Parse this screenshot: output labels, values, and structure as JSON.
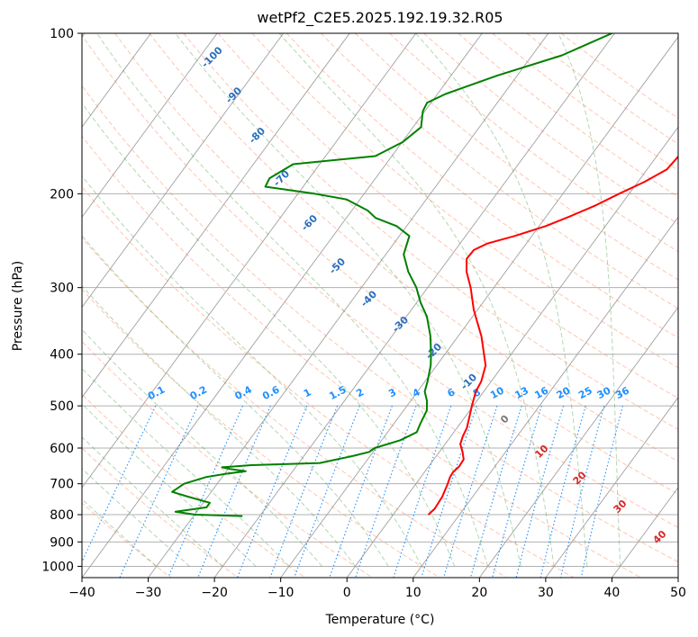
{
  "chart_data": {
    "type": "skew-t",
    "title": "wetPf2_C2E5.2025.192.19.32.R05",
    "xlabel": "Temperature (°C)",
    "ylabel": "Pressure (hPa)",
    "xlim": [
      -40,
      50
    ],
    "ylim": [
      1050,
      100
    ],
    "y_scale": "log",
    "grid": true,
    "x_ticks": [
      -40,
      -30,
      -20,
      -10,
      0,
      10,
      20,
      30,
      40,
      50
    ],
    "y_ticks": [
      100,
      200,
      300,
      400,
      500,
      600,
      700,
      800,
      900,
      1000
    ],
    "colors": {
      "temperature": "#ff0000",
      "dewpoint": "#008000",
      "isotherm": "#888888",
      "dry_adiabat": "#ff7f50",
      "moist_adiabat": "#228b22",
      "mixing_ratio": "#1e90ff",
      "skew_grid": "#a9a9a9"
    },
    "theta_labels": [
      -100,
      -90,
      -80,
      -70,
      -60,
      -50,
      -40,
      -30,
      -20,
      -10
    ],
    "mixing_ratio_labels": [
      "0.1",
      "0.2",
      "0.4",
      "0.6",
      "1",
      "1.5",
      "2",
      "3",
      "4",
      "6",
      "8",
      "10",
      "13",
      "16",
      "20",
      "25",
      "30",
      "36"
    ],
    "moist_labels": [
      "0",
      "10",
      "20",
      "30",
      "40"
    ],
    "series": [
      {
        "name": "",
        "kind": "temperature",
        "points": [
          {
            "p": 800,
            "t": 5.3
          },
          {
            "p": 780,
            "t": 5.6
          },
          {
            "p": 740,
            "t": 5.4
          },
          {
            "p": 700,
            "t": 4.8
          },
          {
            "p": 680,
            "t": 4.4
          },
          {
            "p": 665,
            "t": 4.3
          },
          {
            "p": 650,
            "t": 4.6
          },
          {
            "p": 630,
            "t": 4.5
          },
          {
            "p": 610,
            "t": 3.5
          },
          {
            "p": 590,
            "t": 2.3
          },
          {
            "p": 570,
            "t": 1.8
          },
          {
            "p": 550,
            "t": 1.5
          },
          {
            "p": 520,
            "t": 0.5
          },
          {
            "p": 500,
            "t": -0.2
          },
          {
            "p": 470,
            "t": -1.2
          },
          {
            "p": 450,
            "t": -1.5
          },
          {
            "p": 420,
            "t": -2.6
          },
          {
            "p": 400,
            "t": -4.1
          },
          {
            "p": 370,
            "t": -6.5
          },
          {
            "p": 350,
            "t": -8.5
          },
          {
            "p": 330,
            "t": -10.6
          },
          {
            "p": 300,
            "t": -13.5
          },
          {
            "p": 280,
            "t": -15.9
          },
          {
            "p": 265,
            "t": -17.3
          },
          {
            "p": 255,
            "t": -17.2
          },
          {
            "p": 248,
            "t": -15.9
          },
          {
            "p": 240,
            "t": -12.6
          },
          {
            "p": 230,
            "t": -9.0
          },
          {
            "p": 220,
            "t": -6.3
          },
          {
            "p": 210,
            "t": -3.7
          },
          {
            "p": 200,
            "t": -1.5
          },
          {
            "p": 190,
            "t": 1.0
          },
          {
            "p": 180,
            "t": 3.0
          },
          {
            "p": 170,
            "t": 3.3
          },
          {
            "p": 160,
            "t": 2.8
          },
          {
            "p": 150,
            "t": 2.9
          },
          {
            "p": 140,
            "t": 2.2
          },
          {
            "p": 130,
            "t": 2.7
          },
          {
            "p": 120,
            "t": 4.6
          },
          {
            "p": 110,
            "t": 4.9
          },
          {
            "p": 100,
            "t": 5.5
          }
        ]
      },
      {
        "name": "",
        "kind": "dewpoint",
        "points": [
          {
            "p": 805,
            "t": -22.6
          },
          {
            "p": 800,
            "t": -29.9
          },
          {
            "p": 790,
            "t": -33.2
          },
          {
            "p": 775,
            "t": -29.0
          },
          {
            "p": 760,
            "t": -29.0
          },
          {
            "p": 740,
            "t": -33.0
          },
          {
            "p": 725,
            "t": -35.9
          },
          {
            "p": 700,
            "t": -35.0
          },
          {
            "p": 680,
            "t": -32.4
          },
          {
            "p": 670,
            "t": -29.6
          },
          {
            "p": 663,
            "t": -27.1
          },
          {
            "p": 657,
            "t": -29.6
          },
          {
            "p": 652,
            "t": -31.1
          },
          {
            "p": 646,
            "t": -26.9
          },
          {
            "p": 640,
            "t": -16.8
          },
          {
            "p": 620,
            "t": -12.4
          },
          {
            "p": 610,
            "t": -10.6
          },
          {
            "p": 600,
            "t": -10.2
          },
          {
            "p": 580,
            "t": -7.2
          },
          {
            "p": 560,
            "t": -5.6
          },
          {
            "p": 540,
            "t": -6.0
          },
          {
            "p": 510,
            "t": -6.5
          },
          {
            "p": 490,
            "t": -7.5
          },
          {
            "p": 470,
            "t": -8.9
          },
          {
            "p": 450,
            "t": -9.6
          },
          {
            "p": 420,
            "t": -10.9
          },
          {
            "p": 400,
            "t": -12.1
          },
          {
            "p": 370,
            "t": -14.2
          },
          {
            "p": 340,
            "t": -16.9
          },
          {
            "p": 320,
            "t": -19.4
          },
          {
            "p": 300,
            "t": -21.7
          },
          {
            "p": 280,
            "t": -24.7
          },
          {
            "p": 260,
            "t": -27.3
          },
          {
            "p": 240,
            "t": -28.5
          },
          {
            "p": 230,
            "t": -31.5
          },
          {
            "p": 222,
            "t": -35.6
          },
          {
            "p": 215,
            "t": -37.6
          },
          {
            "p": 205,
            "t": -42.0
          },
          {
            "p": 200,
            "t": -47.5
          },
          {
            "p": 194,
            "t": -55.7
          },
          {
            "p": 187,
            "t": -56.0
          },
          {
            "p": 176,
            "t": -54.0
          },
          {
            "p": 170,
            "t": -42.5
          },
          {
            "p": 160,
            "t": -39.9
          },
          {
            "p": 150,
            "t": -38.8
          },
          {
            "p": 140,
            "t": -40.3
          },
          {
            "p": 135,
            "t": -40.6
          },
          {
            "p": 130,
            "t": -38.8
          },
          {
            "p": 120,
            "t": -33.0
          },
          {
            "p": 110,
            "t": -25.5
          },
          {
            "p": 100,
            "t": -20.4
          }
        ]
      }
    ]
  }
}
